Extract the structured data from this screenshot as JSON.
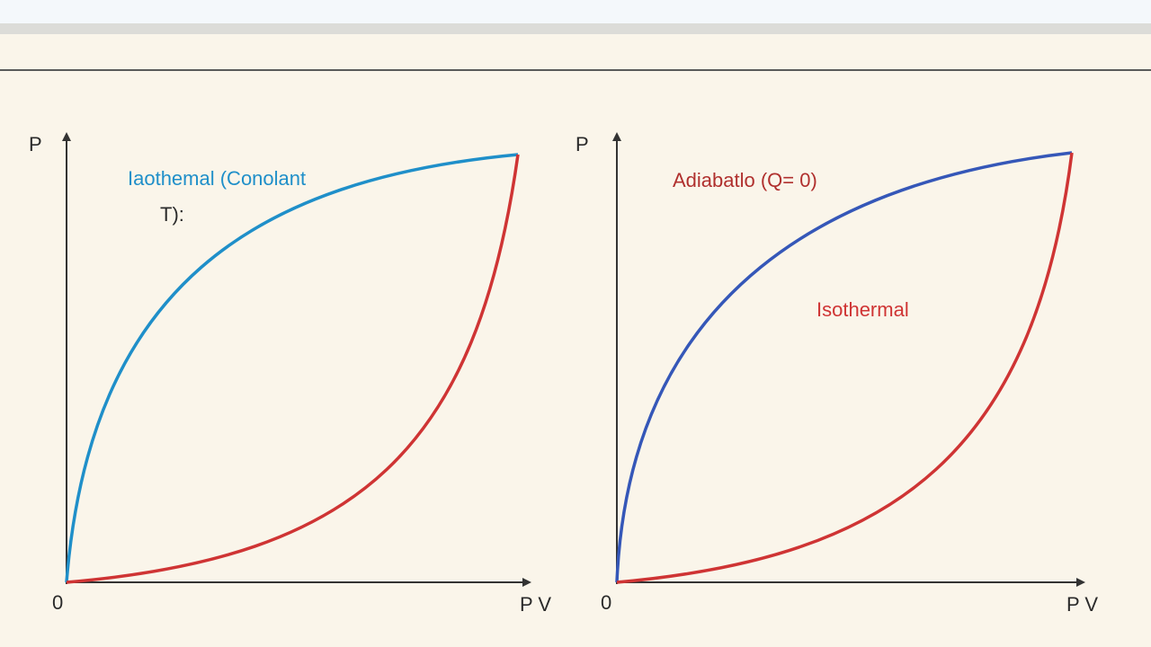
{
  "colors": {
    "background": "#faf5ea",
    "isothermal_blue": "#1f8fc9",
    "adiabatic_blue": "#3557b8",
    "red": "#cf3434",
    "axis": "#333333"
  },
  "left_panel": {
    "y_axis_label": "P",
    "x_axis_label": "P V",
    "origin_label": "0",
    "annotation_line1": "Iaothemal (Conolant",
    "annotation_line2": "T):"
  },
  "right_panel": {
    "y_axis_label": "P",
    "x_axis_label": "P V",
    "origin_label": "0",
    "annotation_top": "Adiabatlo (Q= 0)",
    "annotation_middle": "Isothermal"
  }
}
